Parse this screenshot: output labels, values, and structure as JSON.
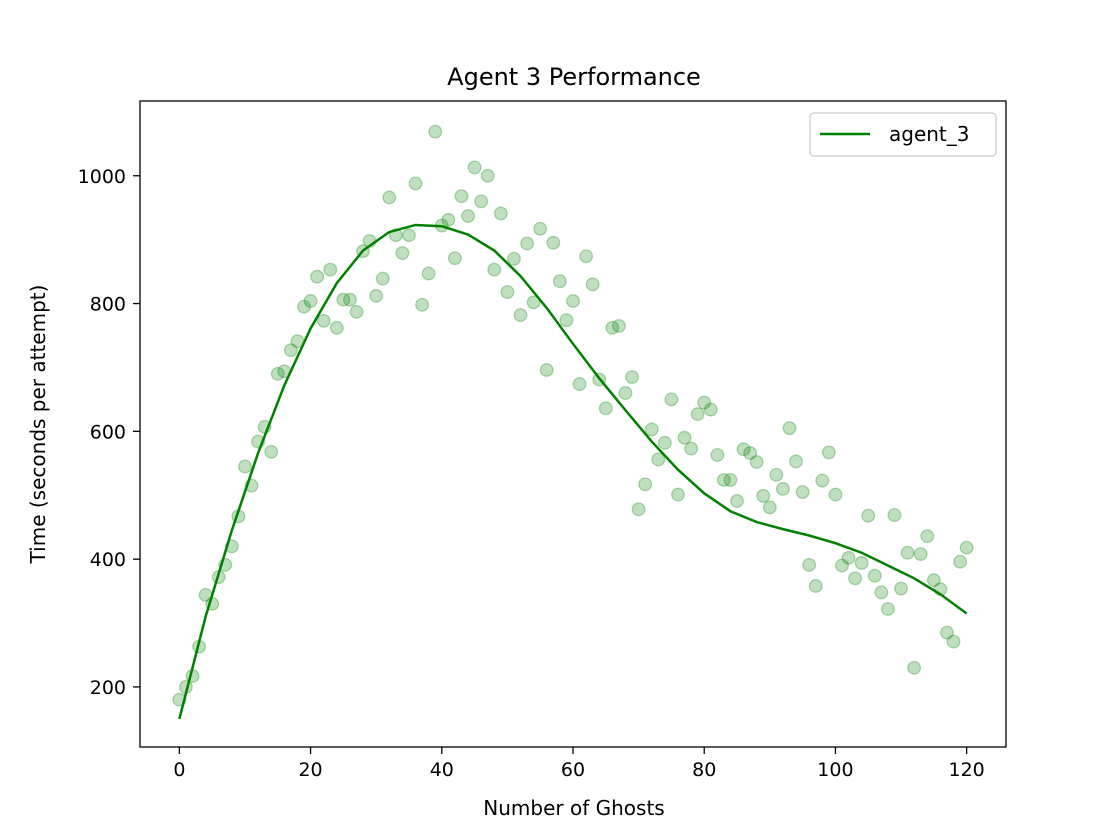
{
  "chart_data": {
    "type": "scatter",
    "title": "Agent 3 Performance",
    "xlabel": "Number of Ghosts",
    "ylabel": "Time (seconds per attempt)",
    "xlim": [
      -6,
      126
    ],
    "ylim": [
      106,
      1117
    ],
    "xticks": [
      0,
      20,
      40,
      60,
      80,
      100,
      120
    ],
    "yticks": [
      200,
      400,
      600,
      800,
      1000
    ],
    "grid": false,
    "legend": {
      "placement": "top-right",
      "entries": [
        "agent_3"
      ]
    },
    "colors": {
      "series": "#008000",
      "points": "#008000"
    },
    "points_alpha": 0.25,
    "points": {
      "x": [
        0,
        1,
        2,
        3,
        4,
        5,
        6,
        7,
        8,
        9,
        10,
        11,
        12,
        13,
        14,
        15,
        16,
        17,
        18,
        19,
        20,
        21,
        22,
        23,
        24,
        25,
        26,
        27,
        28,
        29,
        30,
        31,
        32,
        33,
        34,
        35,
        36,
        37,
        38,
        39,
        40,
        41,
        42,
        43,
        44,
        45,
        46,
        47,
        48,
        49,
        50,
        51,
        52,
        53,
        54,
        55,
        56,
        57,
        58,
        59,
        60,
        61,
        62,
        63,
        64,
        65,
        66,
        67,
        68,
        69,
        70,
        71,
        72,
        73,
        74,
        75,
        76,
        77,
        78,
        79,
        80,
        81,
        82,
        83,
        84,
        85,
        86,
        87,
        88,
        89,
        90,
        91,
        92,
        93,
        94,
        95,
        96,
        97,
        98,
        99,
        100,
        101,
        102,
        103,
        104,
        105,
        106,
        107,
        108,
        109,
        110,
        111,
        112,
        113,
        114,
        115,
        116,
        117,
        118,
        119,
        120
      ],
      "y": [
        180,
        200,
        217,
        263,
        344,
        330,
        372,
        391,
        420,
        467,
        545,
        515,
        584,
        607,
        568,
        690,
        694,
        727,
        741,
        795,
        804,
        842,
        773,
        853,
        762,
        806,
        806,
        787,
        882,
        898,
        812,
        839,
        966,
        907,
        879,
        907,
        988,
        798,
        847,
        1069,
        922,
        931,
        871,
        968,
        937,
        1013,
        960,
        1000,
        853,
        941,
        818,
        870,
        782,
        894,
        802,
        917,
        696,
        895,
        835,
        774,
        804,
        674,
        874,
        830,
        681,
        636,
        762,
        765,
        660,
        685,
        478,
        517,
        603,
        556,
        582,
        650,
        501,
        590,
        573,
        627,
        645,
        634,
        563,
        524,
        524,
        491,
        572,
        566,
        552,
        499,
        481,
        532,
        510,
        605,
        553,
        505,
        391,
        358,
        523,
        567,
        501,
        390,
        402,
        370,
        394,
        468,
        374,
        348,
        322,
        469,
        354,
        410,
        230,
        408,
        436,
        367,
        353,
        285,
        271,
        396,
        418
      ]
    },
    "series": [
      {
        "name": "agent_3",
        "x": [
          0,
          4,
          8,
          12,
          16,
          20,
          24,
          28,
          32,
          36,
          40,
          44,
          48,
          52,
          56,
          60,
          64,
          68,
          72,
          76,
          80,
          84,
          88,
          92,
          96,
          100,
          104,
          108,
          112,
          116,
          120
        ],
        "y": [
          150,
          310,
          445,
          566,
          672,
          761,
          832,
          883,
          912,
          923,
          921,
          908,
          883,
          843,
          793,
          737,
          683,
          633,
          584,
          540,
          503,
          475,
          458,
          447,
          437,
          425,
          410,
          390,
          370,
          345,
          315
        ]
      }
    ]
  }
}
